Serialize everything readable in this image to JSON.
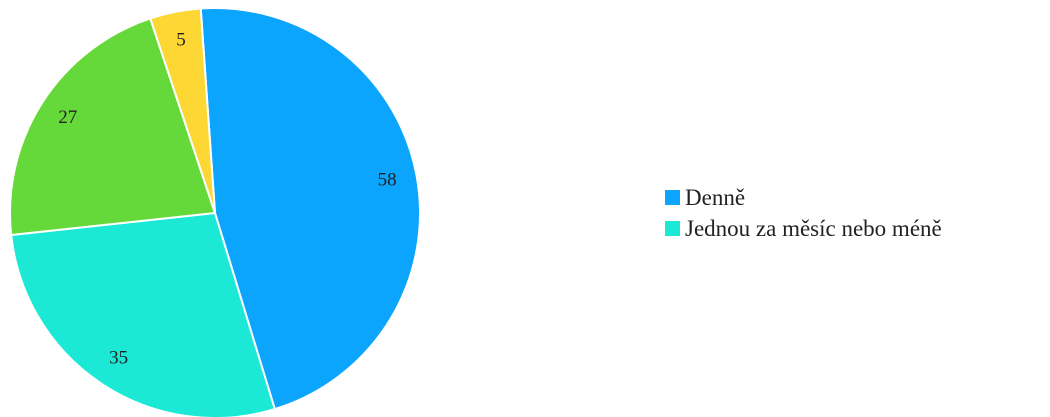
{
  "chart_data": {
    "type": "pie",
    "title": "",
    "slices": [
      {
        "label": "Denně",
        "value": 58,
        "color": "#0ba5fe"
      },
      {
        "label": "Jednou za měsíc nebo méně",
        "value": 35,
        "color": "#1be9d5"
      },
      {
        "label": "",
        "value": 27,
        "color": "#66d93a"
      },
      {
        "label": "",
        "value": 5,
        "color": "#fdd835"
      }
    ],
    "start_angle_deg": -4,
    "direction": "clockwise",
    "show_values": true,
    "legend_position": "right",
    "legend": [
      "Denně",
      "Jednou za měsíc nebo méně"
    ]
  }
}
